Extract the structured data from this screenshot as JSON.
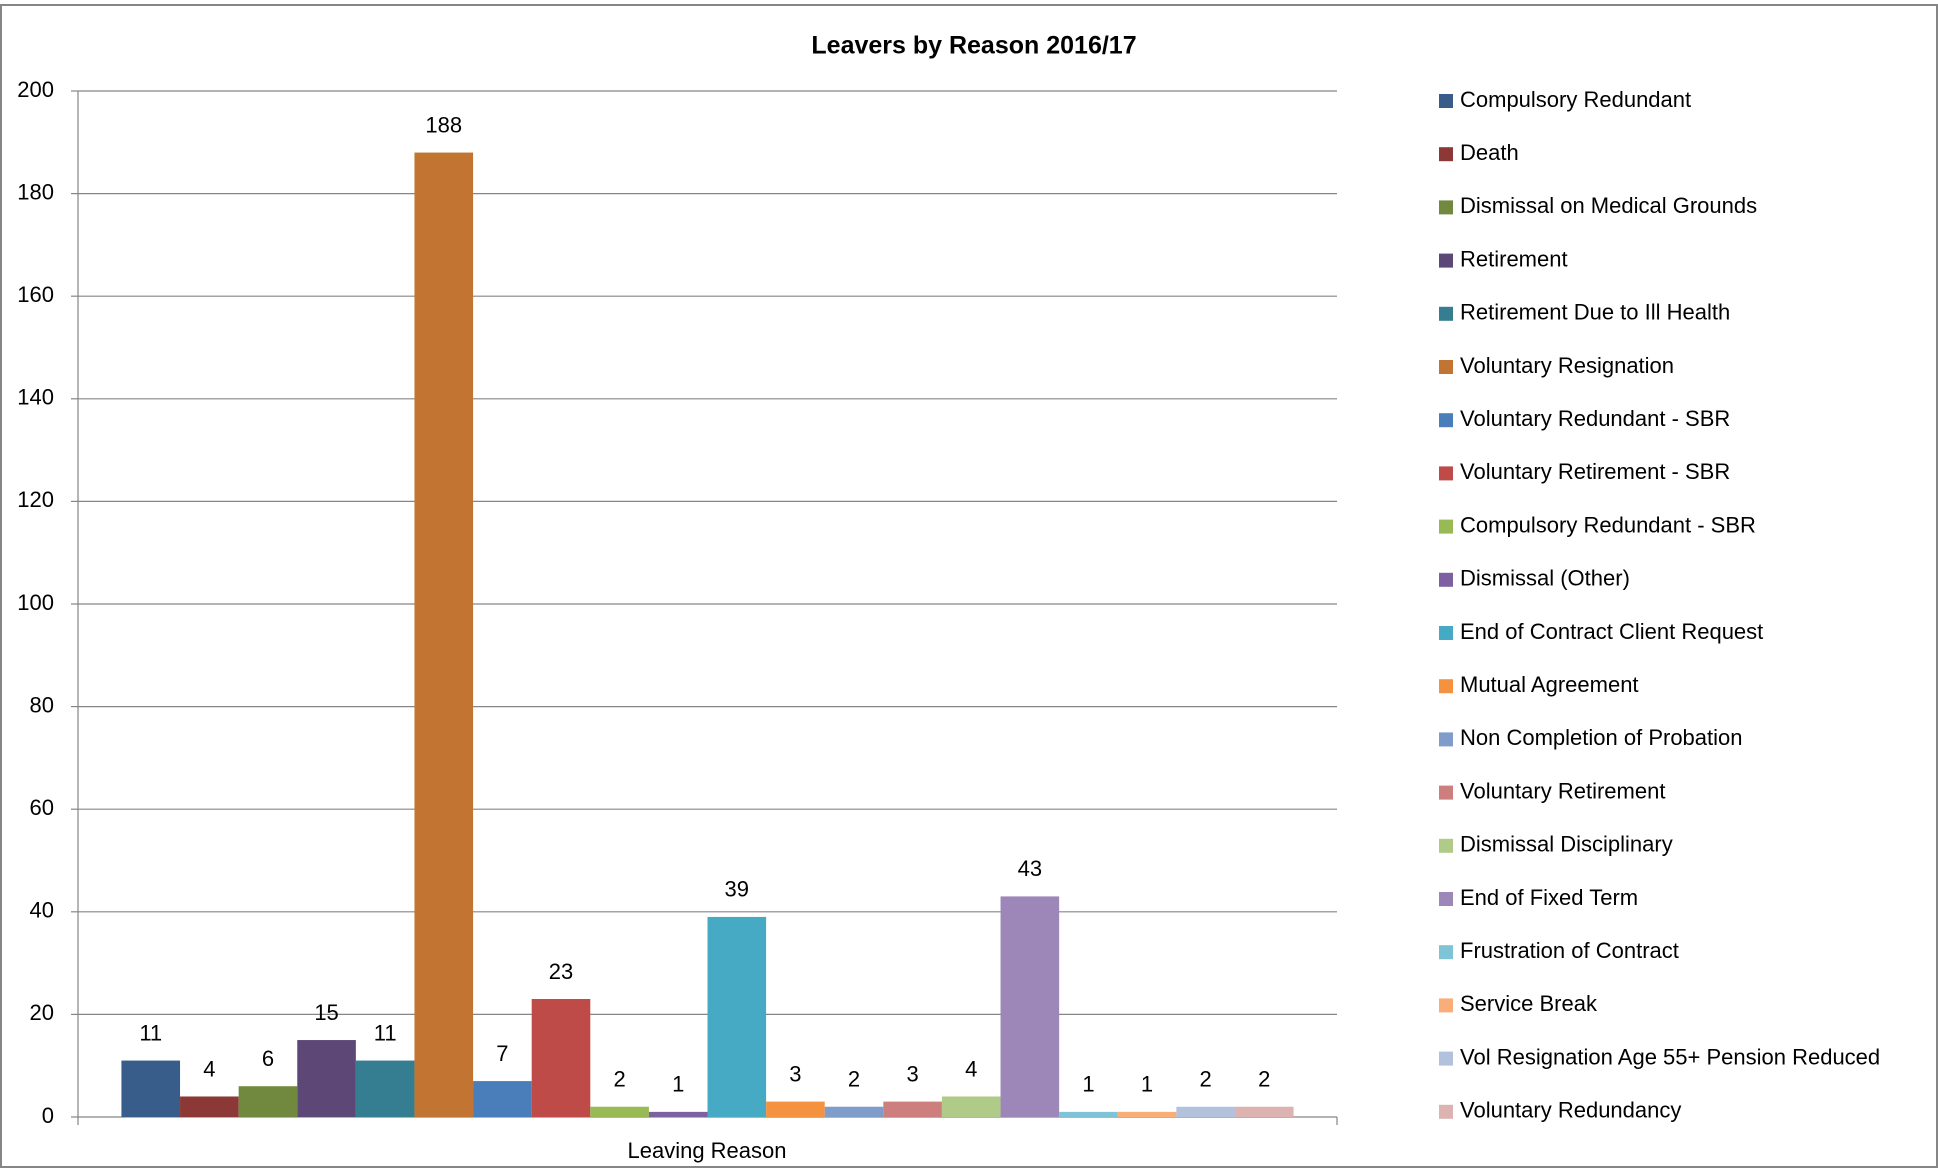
{
  "chart_data": {
    "type": "bar",
    "title": "Leavers by Reason 2016/17",
    "x_label": "Leaving Reason",
    "categories": [
      "Leaving Reason"
    ],
    "ylim": [
      0,
      200
    ],
    "yticks": [
      0,
      20,
      40,
      60,
      80,
      100,
      120,
      140,
      160,
      180,
      200
    ],
    "grid": true,
    "legend": "right",
    "series": [
      {
        "name": "Compulsory Redundant",
        "color": "#385d8a",
        "values": [
          11
        ]
      },
      {
        "name": "Death",
        "color": "#8c3836",
        "values": [
          4
        ]
      },
      {
        "name": "Dismissal on Medical Grounds",
        "color": "#71893f",
        "values": [
          6
        ]
      },
      {
        "name": "Retirement",
        "color": "#5c4776",
        "values": [
          15
        ]
      },
      {
        "name": "Retirement Due to Ill Health",
        "color": "#357d91",
        "values": [
          11
        ]
      },
      {
        "name": "Voluntary Resignation",
        "color": "#c27532",
        "values": [
          188
        ]
      },
      {
        "name": "Voluntary Redundant - SBR",
        "color": "#4a7ebb",
        "values": [
          7
        ]
      },
      {
        "name": "Voluntary Retirement - SBR",
        "color": "#be4b48",
        "values": [
          23
        ]
      },
      {
        "name": "Compulsory Redundant - SBR",
        "color": "#98b954",
        "values": [
          2
        ]
      },
      {
        "name": "Dismissal (Other)",
        "color": "#7d60a0",
        "values": [
          1
        ]
      },
      {
        "name": "End of Contract Client Request",
        "color": "#46aac5",
        "values": [
          39
        ]
      },
      {
        "name": "Mutual Agreement",
        "color": "#f59240",
        "values": [
          3
        ]
      },
      {
        "name": "Non Completion of Probation",
        "color": "#7f9ccb",
        "values": [
          2
        ]
      },
      {
        "name": "Voluntary Retirement",
        "color": "#cd7f7e",
        "values": [
          3
        ]
      },
      {
        "name": "Dismissal Disciplinary",
        "color": "#b0cb88",
        "values": [
          4
        ]
      },
      {
        "name": "End of Fixed Term",
        "color": "#9c87b8",
        "values": [
          43
        ]
      },
      {
        "name": "Frustration of Contract",
        "color": "#7fc3d7",
        "values": [
          1
        ]
      },
      {
        "name": "Service Break",
        "color": "#f9ae79",
        "values": [
          1
        ]
      },
      {
        "name": "Vol Resignation Age 55+ Pension Reduced",
        "color": "#b2c1dc",
        "values": [
          2
        ]
      },
      {
        "name": "Voluntary Redundancy",
        "color": "#ddb3b2",
        "values": [
          2
        ]
      }
    ]
  }
}
